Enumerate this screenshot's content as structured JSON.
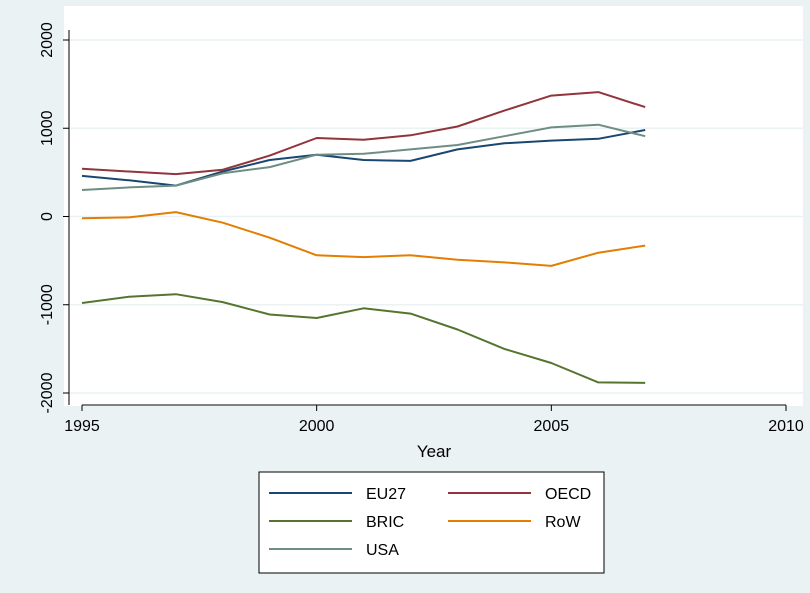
{
  "chart_data": {
    "type": "line",
    "title": "",
    "xlabel": "Year",
    "ylabel": "",
    "xlim": [
      1995,
      2010
    ],
    "ylim": [
      -2000,
      2000
    ],
    "x_ticks": [
      "1995",
      "2000",
      "2005",
      "2010"
    ],
    "y_ticks": [
      "-2000",
      "-1000",
      "0",
      "1000",
      "2000"
    ],
    "grid": "horizontal",
    "legend_position": "bottom",
    "x": [
      1995,
      1996,
      1997,
      1998,
      1999,
      2000,
      2001,
      2002,
      2003,
      2004,
      2005,
      2006,
      2007
    ],
    "series": [
      {
        "name": "EU27",
        "color": "#1a476f",
        "values": [
          460,
          410,
          350,
          510,
          640,
          700,
          640,
          630,
          760,
          830,
          860,
          880,
          980
        ]
      },
      {
        "name": "OECD",
        "color": "#90353b",
        "values": [
          540,
          510,
          480,
          530,
          690,
          890,
          870,
          920,
          1020,
          1200,
          1370,
          1410,
          1240
        ]
      },
      {
        "name": "BRIC",
        "color": "#55752f",
        "values": [
          -980,
          -910,
          -880,
          -970,
          -1110,
          -1150,
          -1040,
          -1100,
          -1280,
          -1500,
          -1660,
          -1880,
          -1885
        ]
      },
      {
        "name": "RoW",
        "color": "#e37e00",
        "values": [
          -20,
          -10,
          50,
          -70,
          -240,
          -440,
          -460,
          -440,
          -490,
          -520,
          -560,
          -410,
          -330
        ]
      },
      {
        "name": "USA",
        "color": "#6e8e84",
        "values": [
          300,
          330,
          350,
          490,
          560,
          700,
          710,
          760,
          810,
          910,
          1010,
          1040,
          910
        ]
      }
    ]
  }
}
